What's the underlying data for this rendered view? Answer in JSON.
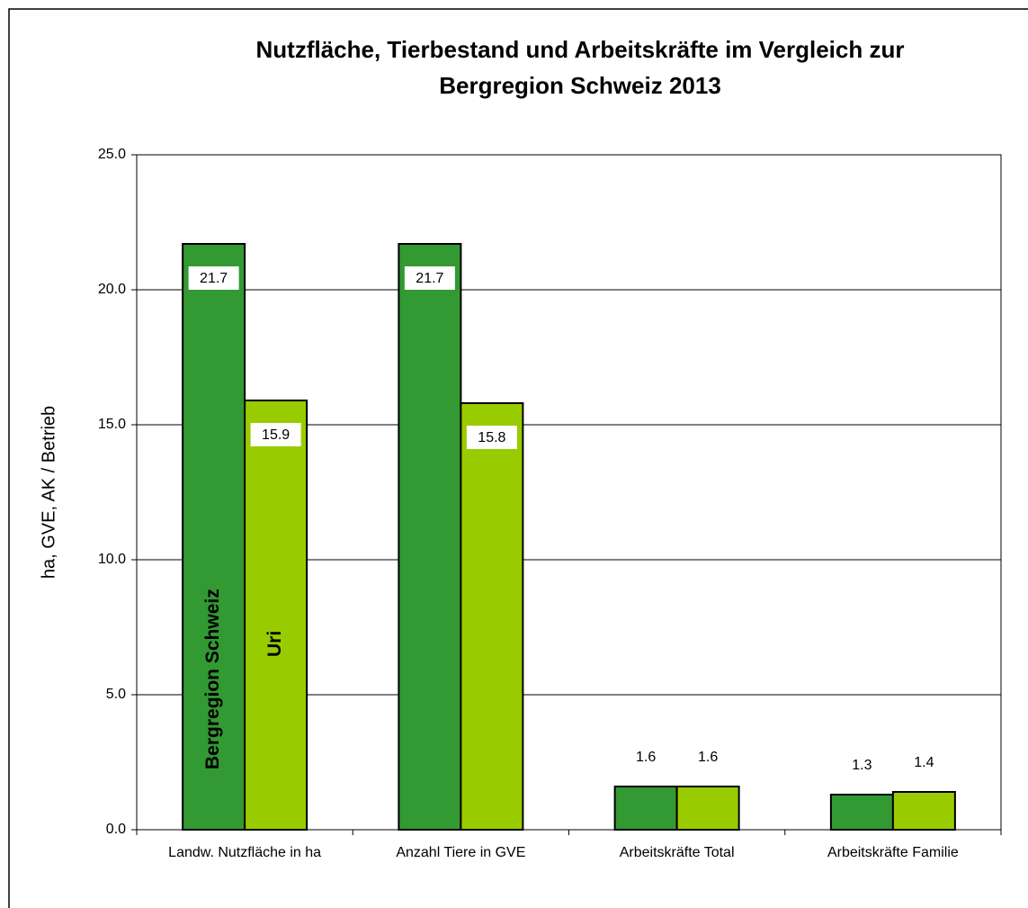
{
  "chart_data": {
    "type": "bar",
    "title": [
      "Nutzfläche, Tierbestand und Arbeitskräfte im Vergleich zur",
      "Bergregion Schweiz 2013"
    ],
    "y_label": "ha, GVE, AK / Betrieb",
    "categories": [
      "Landw. Nutzfläche in ha",
      "Anzahl Tiere in GVE",
      "Arbeitskräfte Total",
      "Arbeitskräfte Familie"
    ],
    "series": [
      {
        "name": "Bergregion Schweiz",
        "color": "#339933",
        "values": [
          21.7,
          21.7,
          1.6,
          1.3
        ]
      },
      {
        "name": "Uri",
        "color": "#99cc00",
        "values": [
          15.9,
          15.8,
          1.6,
          1.4
        ]
      }
    ],
    "ylim": [
      0,
      25
    ],
    "yticks": [
      {
        "value": 0,
        "label": "0.0"
      },
      {
        "value": 5,
        "label": "5.0"
      },
      {
        "value": 10,
        "label": "10.0"
      },
      {
        "value": 15,
        "label": "15.0"
      },
      {
        "value": 20,
        "label": "20.0"
      },
      {
        "value": 25,
        "label": "25.0"
      }
    ],
    "grid": true
  }
}
